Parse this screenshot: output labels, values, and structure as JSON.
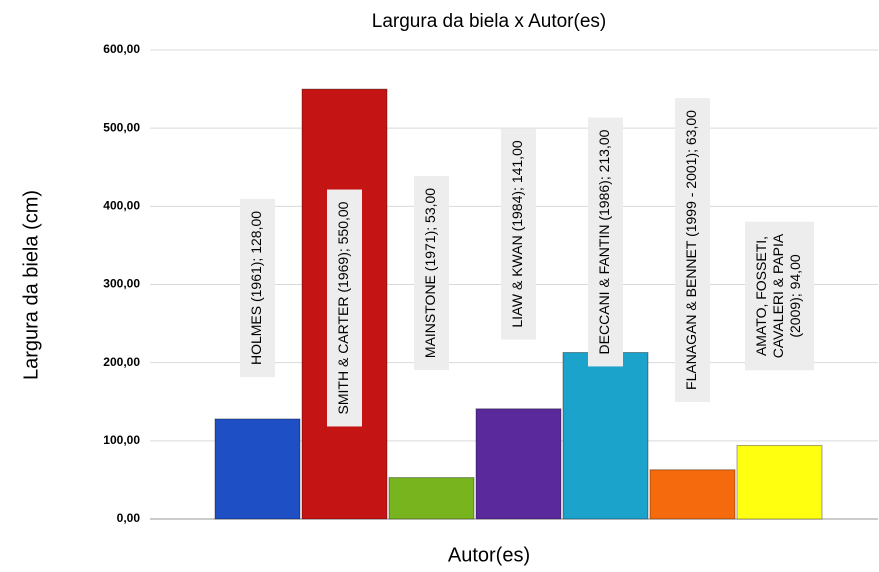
{
  "chart_data": {
    "type": "bar",
    "title": "Largura da biela x Autor(es)",
    "y_label": "Largura da biela (cm)",
    "x_label": "Autor(es)",
    "values": [
      128,
      550,
      53,
      141,
      213,
      63,
      94
    ],
    "value_labels": [
      [
        "HOLMES (1961); 128,00"
      ],
      [
        "SMITH & CARTER (1969); 550,00"
      ],
      [
        "MAINSTONE (1971); 53,00"
      ],
      [
        "LIAW & KWAN (1984); 141,00"
      ],
      [
        "DECCANI & FANTIN (1986); 213,00"
      ],
      [
        "FLANAGAN & BENNET  (1999 - 2001); 63,00"
      ],
      [
        "AMATO, FOSSETI,",
        "CAVALERI & PAPIA",
        "(2009); 94,00"
      ]
    ],
    "colors": [
      "#1f4fc4",
      "#c41414",
      "#78b41e",
      "#5a2a9c",
      "#1ba3cc",
      "#f56a0c",
      "#ffff10"
    ],
    "ylim": [
      0,
      600
    ],
    "yticks": [
      {
        "value": 0,
        "label": "0,00"
      },
      {
        "value": 100,
        "label": "100,00"
      },
      {
        "value": 200,
        "label": "200,00"
      },
      {
        "value": 300,
        "label": "300,00"
      },
      {
        "value": 400,
        "label": "400,00"
      },
      {
        "value": 500,
        "label": "500,00"
      },
      {
        "value": 600,
        "label": "600,00"
      }
    ],
    "grid": true
  }
}
